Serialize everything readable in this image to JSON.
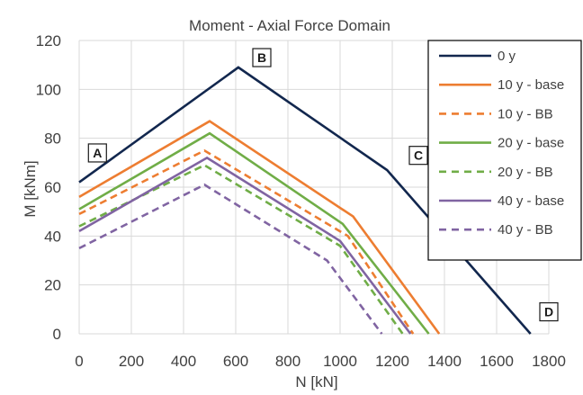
{
  "chart_data": {
    "type": "line",
    "title": "Moment - Axial Force Domain",
    "xlabel": "N [kN]",
    "ylabel": "M [kNm]",
    "xlim": [
      0,
      1800
    ],
    "ylim": [
      0,
      120
    ],
    "xticks": [
      0,
      200,
      400,
      600,
      800,
      1000,
      1200,
      1400,
      1600,
      1800
    ],
    "yticks": [
      0,
      20,
      40,
      60,
      80,
      100,
      120
    ],
    "grid": true,
    "legend_position": "right",
    "series": [
      {
        "name": "0 y",
        "color": "#12274e",
        "dash": "solid",
        "x": [
          0,
          610,
          1180,
          1730
        ],
        "y": [
          62,
          109,
          67,
          0
        ]
      },
      {
        "name": "10 y - base",
        "color": "#ed7d31",
        "dash": "solid",
        "x": [
          0,
          500,
          1050,
          1380
        ],
        "y": [
          56,
          87,
          48,
          0
        ]
      },
      {
        "name": "10 y - BB",
        "color": "#ed7d31",
        "dash": "dashed",
        "x": [
          0,
          480,
          1030,
          1280
        ],
        "y": [
          49,
          75,
          40,
          0
        ]
      },
      {
        "name": "20 y - base",
        "color": "#70ad47",
        "dash": "solid",
        "x": [
          0,
          500,
          1010,
          1340
        ],
        "y": [
          51,
          82,
          45,
          0
        ]
      },
      {
        "name": "20 y - BB",
        "color": "#70ad47",
        "dash": "dashed",
        "x": [
          0,
          480,
          1000,
          1240
        ],
        "y": [
          44,
          69,
          36,
          0
        ]
      },
      {
        "name": "40 y - base",
        "color": "#8064a2",
        "dash": "solid",
        "x": [
          0,
          490,
          1000,
          1270
        ],
        "y": [
          42,
          72,
          38,
          0
        ]
      },
      {
        "name": "40 y - BB",
        "color": "#8064a2",
        "dash": "dashed",
        "x": [
          0,
          480,
          950,
          1160
        ],
        "y": [
          35,
          61,
          30,
          0
        ]
      }
    ],
    "annotations": [
      {
        "label": "A",
        "x": 70,
        "y": 74
      },
      {
        "label": "B",
        "x": 700,
        "y": 113
      },
      {
        "label": "C",
        "x": 1300,
        "y": 73
      },
      {
        "label": "D",
        "x": 1800,
        "y": 9
      }
    ]
  }
}
